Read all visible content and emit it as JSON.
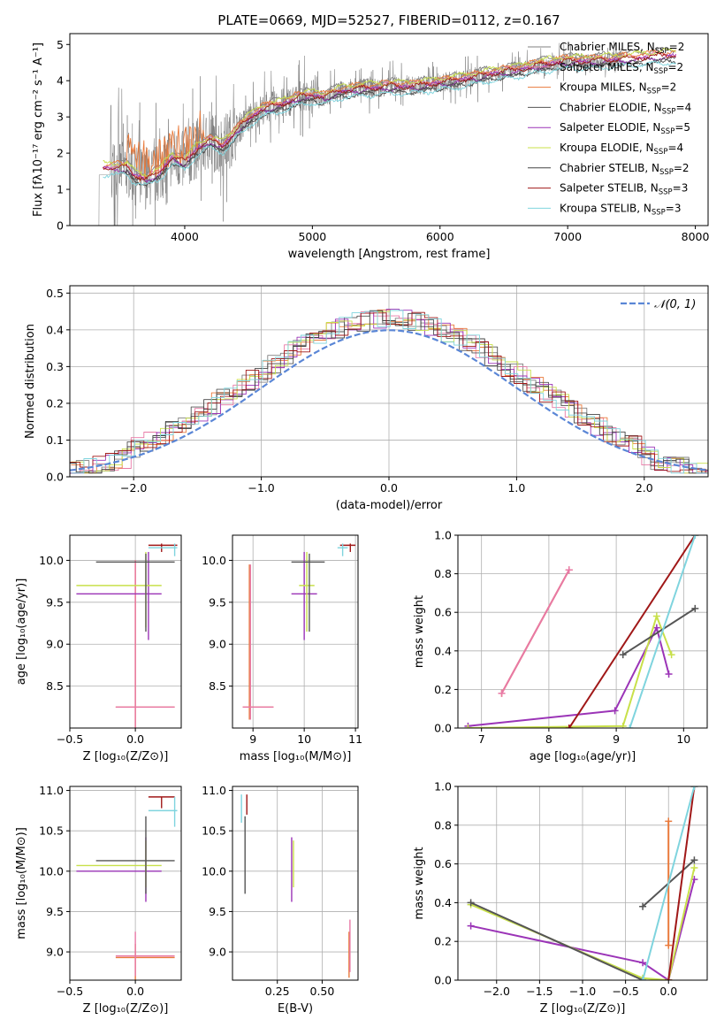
{
  "figure_title": "PLATE=0669, MJD=52527, FIBERID=0112, z=0.167",
  "colors": {
    "gray": "#808080",
    "orange": "#e97a3b",
    "pink": "#e879a6",
    "darkgray": "#555555",
    "purple": "#9b34b7",
    "yellowgreen": "#c8e04a",
    "cyan": "#7fd4de",
    "darkred": "#a01818",
    "blue": "#5a86d6"
  },
  "models": [
    {
      "name": "Chabrier MILES",
      "n": "2",
      "color": "#808080"
    },
    {
      "name": "Salpeter MILES",
      "n": "2",
      "color": "#e879a6"
    },
    {
      "name": "Kroupa MILES",
      "n": "2",
      "color": "#e97a3b"
    },
    {
      "name": "Chabrier ELODIE",
      "n": "4",
      "color": "#555555"
    },
    {
      "name": "Salpeter ELODIE",
      "n": "5",
      "color": "#9b34b7"
    },
    {
      "name": "Kroupa ELODIE",
      "n": "4",
      "color": "#c8e04a"
    },
    {
      "name": "Chabrier STELIB",
      "n": "2",
      "color": "#444444"
    },
    {
      "name": "Salpeter STELIB",
      "n": "3",
      "color": "#a01818"
    },
    {
      "name": "Kroupa STELIB",
      "n": "3",
      "color": "#7fd4de"
    }
  ],
  "legend_suffix": ", N",
  "legend_sub": "SSP",
  "chart_data": [
    {
      "id": "spectrum",
      "type": "line",
      "xlabel": "wavelength [Angstrom, rest frame]",
      "ylabel": "Flux [fλ10⁻¹⁷ erg cm⁻² s⁻¹ A⁻¹]",
      "xlim": [
        3100,
        8100
      ],
      "ylim": [
        0,
        5.3
      ],
      "xticks": [
        4000,
        5000,
        6000,
        7000,
        8000
      ],
      "yticks": [
        0,
        1,
        2,
        3,
        4,
        5
      ],
      "legend": "upper right",
      "grid": false,
      "model_continuum": {
        "x": [
          3550,
          3600,
          3700,
          3800,
          3900,
          4000,
          4100,
          4200,
          4300,
          4400,
          4500,
          4600,
          4700,
          4800,
          4900,
          5000,
          5100,
          5200,
          5300,
          5400,
          5500,
          5600,
          5800,
          6000,
          6200,
          6400,
          6600,
          6800,
          7000,
          7200,
          7400,
          7600,
          7800
        ],
        "y": [
          1.6,
          1.4,
          1.3,
          1.45,
          1.9,
          1.75,
          2.15,
          2.35,
          2.2,
          2.6,
          2.95,
          3.2,
          3.3,
          3.4,
          3.55,
          3.6,
          3.55,
          3.7,
          3.75,
          3.8,
          3.8,
          3.85,
          3.85,
          3.95,
          4.05,
          4.2,
          4.3,
          4.45,
          4.55,
          4.55,
          4.6,
          4.65,
          4.7
        ]
      }
    },
    {
      "id": "residual_hist",
      "type": "line",
      "xlabel": "(data-model)/error",
      "ylabel": "Normed distribution",
      "xlim": [
        -2.5,
        2.5
      ],
      "ylim": [
        0,
        0.52
      ],
      "xticks": [
        -2,
        -1,
        0,
        1,
        2
      ],
      "yticks": [
        0.0,
        0.1,
        0.2,
        0.3,
        0.4,
        0.5
      ],
      "legend_label": "𝒩(0, 1)",
      "legend": "upper right",
      "grid": true,
      "reference_curve": "normal pdf mu=0 sigma=1"
    },
    {
      "id": "age_vs_Z",
      "type": "scatter",
      "xlabel": "Z [log₁₀(Z/Z⊙)]",
      "ylabel": "age  [log₁₀(age/yr)]",
      "xlim": [
        -0.5,
        0.35
      ],
      "ylim": [
        8.0,
        10.3
      ],
      "xticks": [
        -0.5,
        0.0,
        0.5
      ],
      "yticks": [
        8.5,
        9.0,
        9.5,
        10.0
      ],
      "grid": true
    },
    {
      "id": "age_vs_mass",
      "type": "scatter",
      "xlabel": "mass [log₁₀(M/M⊙)]",
      "ylabel": "",
      "xlim": [
        8.6,
        11.05
      ],
      "ylim": [
        8.0,
        10.3
      ],
      "xticks": [
        9,
        10,
        11
      ],
      "yticks": [
        8.5,
        9.0,
        9.5,
        10.0
      ],
      "grid": true
    },
    {
      "id": "weight_vs_age",
      "type": "line",
      "xlabel": "age  [log₁₀(age/yr)]",
      "ylabel": "mass weight",
      "xlim": [
        6.65,
        10.35
      ],
      "ylim": [
        0,
        1.0
      ],
      "xticks": [
        7,
        8,
        9,
        10
      ],
      "yticks": [
        0.0,
        0.2,
        0.4,
        0.6,
        0.8,
        1.0
      ],
      "grid": true,
      "series": [
        {
          "color": "#e97a3b",
          "x": [
            7.3,
            8.3
          ],
          "y": [
            0.18,
            0.82
          ]
        },
        {
          "color": "#e879a6",
          "x": [
            7.3,
            8.3
          ],
          "y": [
            0.18,
            0.82
          ]
        },
        {
          "color": "#9b34b7",
          "x": [
            6.8,
            8.98,
            9.6,
            9.78
          ],
          "y": [
            0.01,
            0.09,
            0.52,
            0.28
          ]
        },
        {
          "color": "#c8e04a",
          "x": [
            6.8,
            9.1,
            9.6,
            9.82
          ],
          "y": [
            0.0,
            0.01,
            0.58,
            0.38
          ]
        },
        {
          "color": "#555555",
          "x": [
            9.1,
            10.17
          ],
          "y": [
            0.38,
            0.62
          ]
        },
        {
          "color": "#a01818",
          "x": [
            8.3,
            10.17
          ],
          "y": [
            0.0,
            1.0
          ]
        },
        {
          "color": "#7fd4de",
          "x": [
            9.2,
            10.17
          ],
          "y": [
            0.0,
            1.0
          ]
        }
      ]
    },
    {
      "id": "mass_vs_Z",
      "type": "scatter",
      "xlabel": "Z [log₁₀(Z/Z⊙)]",
      "ylabel": "mass [log₁₀(M/M⊙)]",
      "xlim": [
        -0.5,
        0.35
      ],
      "ylim": [
        8.65,
        11.05
      ],
      "xticks": [
        -0.5,
        0.0,
        0.5
      ],
      "yticks": [
        9.0,
        9.5,
        10.0,
        10.5,
        11.0
      ],
      "grid": true
    },
    {
      "id": "mass_vs_ebv",
      "type": "scatter",
      "xlabel": "E(B-V)",
      "ylabel": "",
      "xlim": [
        0.0,
        0.7
      ],
      "ylim": [
        8.65,
        11.05
      ],
      "xticks": [
        0.25,
        0.5
      ],
      "yticks": [
        9.0,
        9.5,
        10.0,
        10.5,
        11.0
      ],
      "grid": true
    },
    {
      "id": "weight_vs_Z",
      "type": "line",
      "xlabel": "Z [log₁₀(Z/Z⊙)]",
      "ylabel": "mass weight",
      "xlim": [
        -2.45,
        0.45
      ],
      "ylim": [
        0,
        1.0
      ],
      "xticks": [
        -2.0,
        -1.5,
        -1.0,
        -0.5,
        0.0
      ],
      "yticks": [
        0.0,
        0.2,
        0.4,
        0.6,
        0.8,
        1.0
      ],
      "grid": true,
      "series": [
        {
          "color": "#9b34b7",
          "x": [
            -2.3,
            -0.3,
            0.0,
            0.3
          ],
          "y": [
            0.28,
            0.09,
            0.0,
            0.52
          ]
        },
        {
          "color": "#c8e04a",
          "x": [
            -2.3,
            -0.3,
            0.0,
            0.3
          ],
          "y": [
            0.39,
            0.01,
            0.0,
            0.58
          ]
        },
        {
          "color": "#555555",
          "x": [
            -2.3,
            -0.3
          ],
          "y": [
            0.4,
            0.0
          ]
        },
        {
          "color": "#555555",
          "x": [
            -0.3,
            0.3
          ],
          "y": [
            0.38,
            0.62
          ]
        },
        {
          "color": "#e97a3b",
          "x": [
            0.0,
            0.0
          ],
          "y": [
            0.18,
            0.82
          ]
        },
        {
          "color": "#a01818",
          "x": [
            0.0,
            0.3
          ],
          "y": [
            0.0,
            1.0
          ]
        },
        {
          "color": "#7fd4de",
          "x": [
            -0.3,
            0.3
          ],
          "y": [
            0.0,
            1.0
          ]
        }
      ]
    }
  ]
}
